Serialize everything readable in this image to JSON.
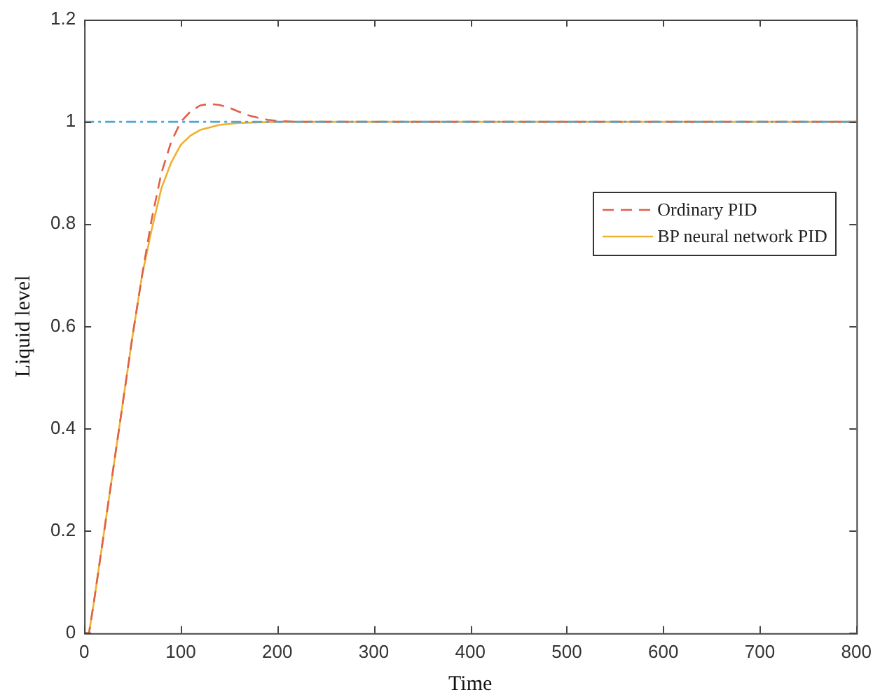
{
  "chart_data": {
    "type": "line",
    "xlabel": "Time",
    "ylabel": "Liquid level",
    "xlim": [
      0,
      800
    ],
    "xticks": [
      0,
      100,
      200,
      300,
      400,
      500,
      600,
      700,
      800
    ],
    "ylim": [
      0,
      1.2
    ],
    "yticks": [
      0,
      0.2,
      0.4,
      0.6,
      0.8,
      1,
      1.2
    ],
    "legend": "right",
    "ref_lines": [
      {
        "axis": "y",
        "value": 1,
        "color": "#4da6d6",
        "line_style": "dashed"
      }
    ],
    "series": [
      {
        "name": "Ordinary PID",
        "color": "#e0604a",
        "line_style": "dashed",
        "x": [
          0,
          5,
          10,
          20,
          30,
          40,
          50,
          60,
          70,
          80,
          90,
          100,
          110,
          120,
          130,
          140,
          150,
          160,
          170,
          180,
          190,
          200,
          220,
          250,
          300,
          800
        ],
        "values": [
          0,
          0,
          0.06,
          0.19,
          0.32,
          0.45,
          0.58,
          0.7,
          0.81,
          0.9,
          0.96,
          1.0,
          1.02,
          1.032,
          1.035,
          1.033,
          1.028,
          1.02,
          1.013,
          1.008,
          1.004,
          1.002,
          1.0,
          1.0,
          1.0,
          1.0
        ]
      },
      {
        "name": "BP neural network PID",
        "color": "#f0b030",
        "line_style": "solid",
        "x": [
          0,
          5,
          10,
          20,
          30,
          40,
          50,
          60,
          70,
          80,
          90,
          100,
          110,
          120,
          140,
          160,
          180,
          200,
          250,
          800
        ],
        "values": [
          0,
          0,
          0.06,
          0.19,
          0.32,
          0.45,
          0.58,
          0.7,
          0.79,
          0.87,
          0.92,
          0.955,
          0.973,
          0.984,
          0.994,
          0.998,
          0.999,
          1.0,
          1.0,
          1.0
        ]
      }
    ]
  }
}
